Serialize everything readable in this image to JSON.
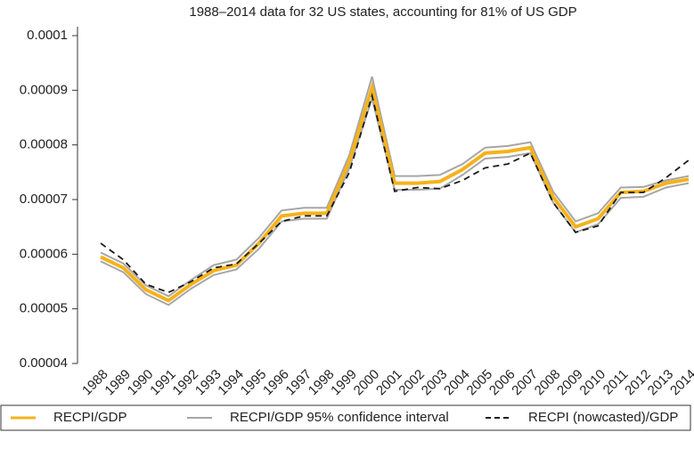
{
  "chart_data": {
    "type": "line",
    "title": "1988–2014 data for 32 US states, accounting for 81% of US GDP",
    "categories": [
      "1988",
      "1989",
      "1990",
      "1991",
      "1992",
      "1993",
      "1994",
      "1995",
      "1996",
      "1997",
      "1998",
      "1999",
      "2000",
      "2001",
      "2002",
      "2003",
      "2004",
      "2005",
      "2006",
      "2007",
      "2008",
      "2009",
      "2010",
      "2011",
      "2012",
      "2013",
      "2014"
    ],
    "series": [
      {
        "name": "RECPI/GDP",
        "color": "#f5b21b",
        "style": "solid",
        "values": [
          5.95e-05,
          5.75e-05,
          5.35e-05,
          5.15e-05,
          5.45e-05,
          5.7e-05,
          5.8e-05,
          6.2e-05,
          6.7e-05,
          6.75e-05,
          6.75e-05,
          7.7e-05,
          9.05e-05,
          7.3e-05,
          7.3e-05,
          7.33e-05,
          7.55e-05,
          7.85e-05,
          7.88e-05,
          7.95e-05,
          7.05e-05,
          6.5e-05,
          6.65e-05,
          7.13e-05,
          7.15e-05,
          7.3e-05,
          7.37e-05
        ]
      },
      {
        "name": "RECPI/GDP 95% confidence interval",
        "color": "#a6a6a6",
        "style": "band",
        "upper": [
          6.03e-05,
          5.83e-05,
          5.43e-05,
          5.23e-05,
          5.53e-05,
          5.8e-05,
          5.9e-05,
          6.3e-05,
          6.8e-05,
          6.85e-05,
          6.85e-05,
          7.82e-05,
          9.25e-05,
          7.43e-05,
          7.43e-05,
          7.45e-05,
          7.65e-05,
          7.95e-05,
          7.98e-05,
          8.05e-05,
          7.15e-05,
          6.6e-05,
          6.75e-05,
          7.22e-05,
          7.23e-05,
          7.35e-05,
          7.43e-05
        ],
        "lower": [
          5.87e-05,
          5.67e-05,
          5.27e-05,
          5.07e-05,
          5.37e-05,
          5.62e-05,
          5.72e-05,
          6.1e-05,
          6.6e-05,
          6.65e-05,
          6.65e-05,
          7.58e-05,
          8.85e-05,
          7.18e-05,
          7.18e-05,
          7.2e-05,
          7.45e-05,
          7.75e-05,
          7.78e-05,
          7.85e-05,
          6.95e-05,
          6.4e-05,
          6.55e-05,
          7.03e-05,
          7.05e-05,
          7.22e-05,
          7.3e-05
        ]
      },
      {
        "name": "RECPI (nowcasted)/GDP",
        "color": "#1a1a1a",
        "style": "dashed",
        "values": [
          6.2e-05,
          5.9e-05,
          5.45e-05,
          5.3e-05,
          5.5e-05,
          5.75e-05,
          5.82e-05,
          6.2e-05,
          6.6e-05,
          6.7e-05,
          6.7e-05,
          7.5e-05,
          8.9e-05,
          7.15e-05,
          7.22e-05,
          7.2e-05,
          7.35e-05,
          7.58e-05,
          7.65e-05,
          7.85e-05,
          6.95e-05,
          6.4e-05,
          6.52e-05,
          7.13e-05,
          7.13e-05,
          7.4e-05,
          7.72e-05
        ]
      }
    ],
    "ylim": [
      4e-05,
      0.0001
    ],
    "yticks": [
      4e-05,
      5e-05,
      6e-05,
      7e-05,
      8e-05,
      9e-05,
      0.0001
    ],
    "legend": "bottom"
  }
}
